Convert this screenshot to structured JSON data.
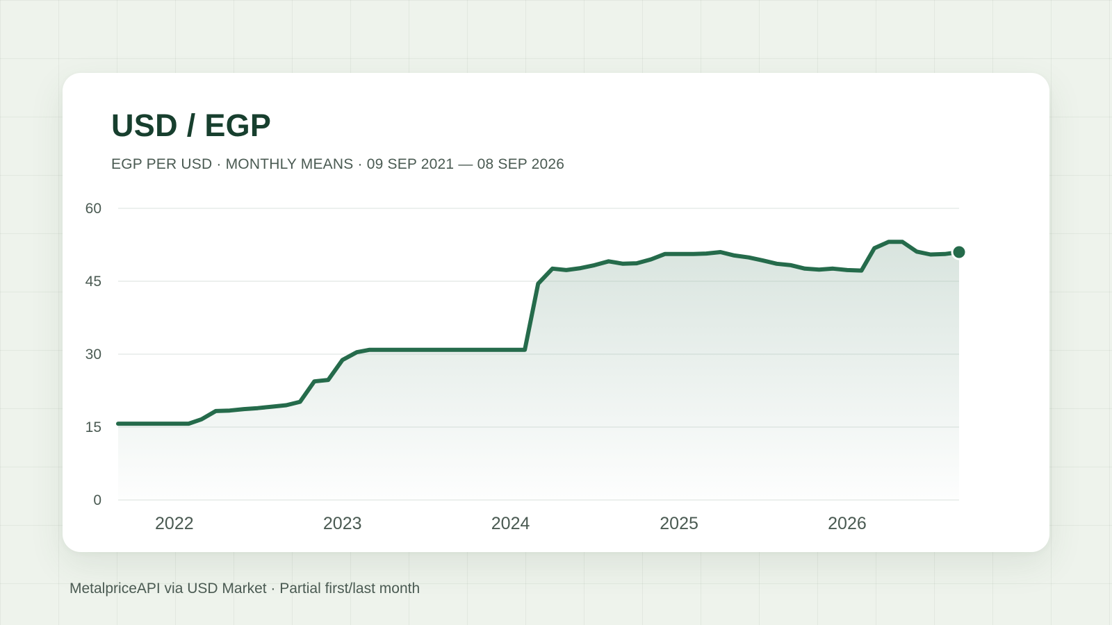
{
  "title": "USD / EGP",
  "subtitle": "EGP PER USD · MONTHLY MEANS · 09 SEP 2021 — 08 SEP 2026",
  "footer": "MetalpriceAPI via USD Market · Partial first/last month",
  "colors": {
    "line": "#256b4b",
    "fill_top": "#a9c3b6",
    "grid": "#e6ebe8",
    "axis_text": "#4a5a52"
  },
  "chart_data": {
    "type": "area",
    "title": "USD / EGP",
    "subtitle": "EGP PER USD · MONTHLY MEANS · 09 SEP 2021 — 08 SEP 2026",
    "xlabel": "",
    "ylabel": "",
    "ylim": [
      0,
      60
    ],
    "yticks": [
      "0",
      "15",
      "30",
      "45",
      "60"
    ],
    "xlim": [
      "2021-09-01",
      "2026-09-01"
    ],
    "xticks": [
      {
        "label": "2022",
        "date": "2022-01-01"
      },
      {
        "label": "2023",
        "date": "2023-01-01"
      },
      {
        "label": "2024",
        "date": "2024-01-01"
      },
      {
        "label": "2025",
        "date": "2025-01-01"
      },
      {
        "label": "2026",
        "date": "2026-01-01"
      }
    ],
    "grid": true,
    "last_point_marker": true,
    "series": [
      {
        "x": [
          "2021-09",
          "2021-10",
          "2021-11",
          "2021-12",
          "2022-01",
          "2022-02",
          "2022-03",
          "2022-04",
          "2022-05",
          "2022-06",
          "2022-07",
          "2022-08",
          "2022-09",
          "2022-10",
          "2022-11",
          "2022-12",
          "2023-01",
          "2023-02",
          "2023-03",
          "2023-04",
          "2023-05",
          "2023-06",
          "2023-07",
          "2023-08",
          "2023-09",
          "2023-10",
          "2023-11",
          "2023-12",
          "2024-01",
          "2024-02",
          "2024-03",
          "2024-04",
          "2024-05",
          "2024-06",
          "2024-07",
          "2024-08",
          "2024-09",
          "2024-10",
          "2024-11",
          "2024-12",
          "2025-01",
          "2025-02",
          "2025-03",
          "2025-04",
          "2025-05",
          "2025-06",
          "2025-07",
          "2025-08",
          "2025-09",
          "2025-10",
          "2025-11",
          "2025-12",
          "2026-01",
          "2026-02",
          "2026-03",
          "2026-04",
          "2026-05",
          "2026-06",
          "2026-07",
          "2026-08",
          "2026-09"
        ],
        "values": [
          15.7,
          15.7,
          15.7,
          15.7,
          15.7,
          15.7,
          16.6,
          18.3,
          18.4,
          18.7,
          18.9,
          19.2,
          19.5,
          20.2,
          24.4,
          24.7,
          28.8,
          30.4,
          30.9,
          30.9,
          30.9,
          30.9,
          30.9,
          30.9,
          30.9,
          30.9,
          30.9,
          30.9,
          30.9,
          30.9,
          44.5,
          47.6,
          47.3,
          47.7,
          48.3,
          49.1,
          48.6,
          48.7,
          49.5,
          50.6,
          50.6,
          50.6,
          50.7,
          51.0,
          50.3,
          49.9,
          49.3,
          48.6,
          48.3,
          47.6,
          47.4,
          47.6,
          47.3,
          47.2,
          51.8,
          53.1,
          53.1,
          51.1,
          50.5,
          50.6,
          51.0
        ]
      }
    ]
  }
}
